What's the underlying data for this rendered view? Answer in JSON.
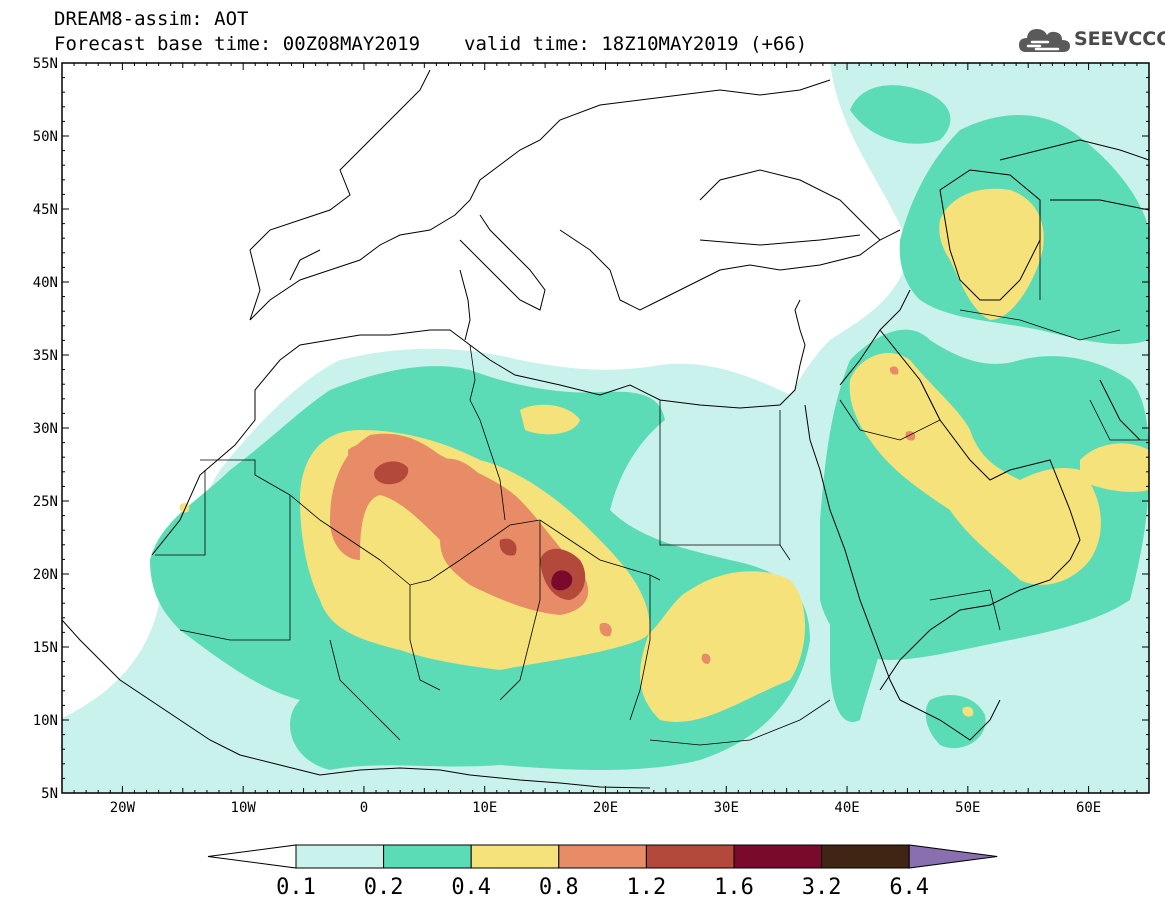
{
  "header": {
    "line1": "DREAM8-assim: AOT",
    "base_time": "Forecast base time: 00Z08MAY2019",
    "valid_time": "valid time: 18Z10MAY2019 (+66)"
  },
  "logo": {
    "text": "SEEVCCC",
    "icon": "cloud-icon"
  },
  "map": {
    "lat_labels": [
      "55N",
      "50N",
      "45N",
      "40N",
      "35N",
      "30N",
      "25N",
      "20N",
      "15N",
      "10N",
      "5N"
    ],
    "lon_labels": [
      "20W",
      "10W",
      "0",
      "10E",
      "20E",
      "30E",
      "40E",
      "50E",
      "60E"
    ],
    "lon_range": [
      -25,
      65
    ],
    "lat_range": [
      5,
      55
    ]
  },
  "colorbar": {
    "colors": [
      "#c9f2ec",
      "#5cdcb6",
      "#f5e27a",
      "#e88c68",
      "#b3493a",
      "#7a0a2c",
      "#402515",
      "#8a6fb0"
    ],
    "labels": [
      "0.1",
      "0.2",
      "0.4",
      "0.8",
      "1.2",
      "1.6",
      "3.2",
      "6.4"
    ]
  }
}
